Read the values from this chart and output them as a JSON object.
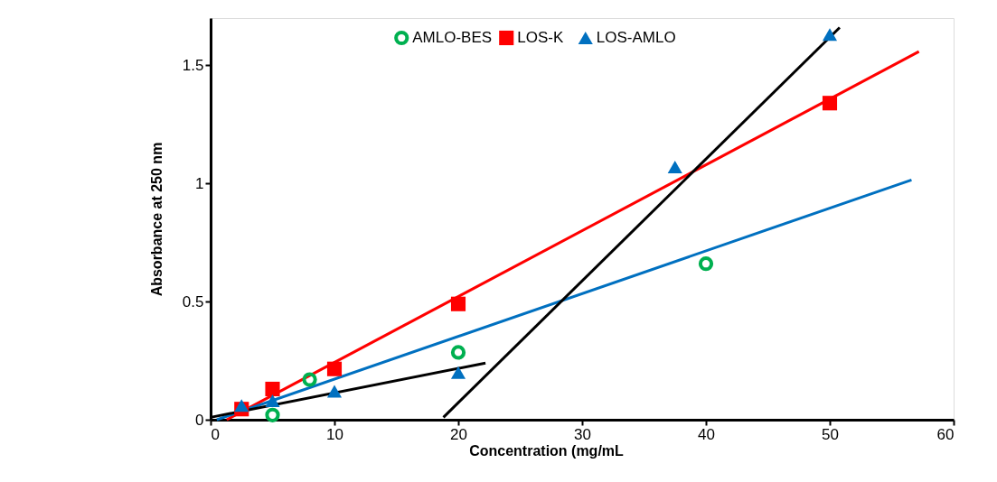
{
  "chart_data": {
    "type": "scatter",
    "xlabel": "Concentration (mg/mL",
    "ylabel": "Absorbance at 250 nm",
    "xlim": [
      0,
      60
    ],
    "xticks": [
      0,
      10,
      20,
      30,
      40,
      50,
      60
    ],
    "ylim": [
      0,
      1.7
    ],
    "yticks": [
      0,
      0.5,
      1,
      1.5
    ],
    "grid": false,
    "legend": "top",
    "series": [
      {
        "name": "AMLO-BES",
        "marker": "circle",
        "color": "#00b050",
        "x": [
          5,
          8,
          20,
          40
        ],
        "values": [
          0.02,
          0.17,
          0.285,
          0.66
        ]
      },
      {
        "name": "LOS-K",
        "marker": "square",
        "color": "#ff0000",
        "x": [
          2.5,
          5,
          10,
          20,
          50
        ],
        "values": [
          0.045,
          0.13,
          0.215,
          0.49,
          1.34
        ]
      },
      {
        "name": "LOS-AMLO",
        "marker": "triangle",
        "color": "#0070c0",
        "x": [
          2.5,
          5,
          10,
          20,
          37.5,
          50
        ],
        "values": [
          0.06,
          0.08,
          0.12,
          0.2,
          1.07,
          1.63
        ]
      },
      {
        "type": "line",
        "color": "#ff0000",
        "x": [
          1.3,
          57.2
        ],
        "values": [
          0,
          1.558
        ]
      },
      {
        "type": "line",
        "color": "#0070c0",
        "x": [
          0.5,
          56.6
        ],
        "values": [
          0,
          1.015
        ]
      },
      {
        "type": "line",
        "color": "#000000",
        "x": [
          0,
          22.2
        ],
        "values": [
          0.01,
          0.24
        ]
      },
      {
        "type": "line",
        "color": "#000000",
        "x": [
          18.8,
          50.8
        ],
        "values": [
          0.01,
          1.66
        ]
      }
    ]
  }
}
